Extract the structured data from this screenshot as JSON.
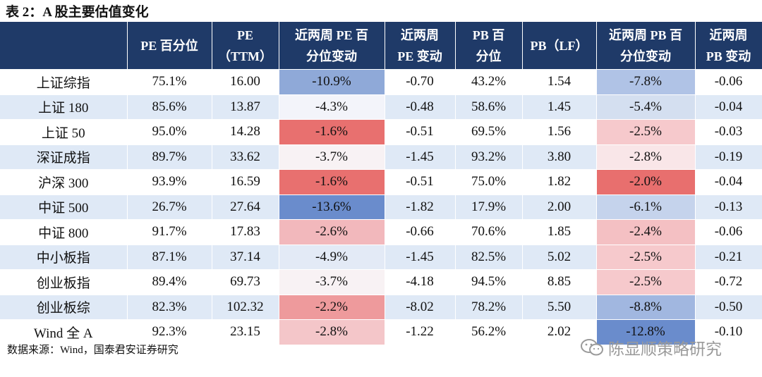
{
  "title": "表 2：A 股主要估值变化",
  "table": {
    "header": [
      [
        "PE 百分位"
      ],
      [
        "PE",
        "（TTM）"
      ],
      [
        "近两周 PE 百",
        "分位变动"
      ],
      [
        "近两周",
        "PE 变动"
      ],
      [
        "PB 百",
        "分位"
      ],
      [
        "PB（LF）"
      ],
      [
        "近两周 PB 百",
        "分位变动"
      ],
      [
        "近两周",
        "PB 变动"
      ]
    ],
    "rows": [
      [
        "上证综指",
        "75.1%",
        "16.00",
        "-10.9%",
        "-0.70",
        "43.2%",
        "1.54",
        "-7.8%",
        "-0.06"
      ],
      [
        "上证 180",
        "85.6%",
        "13.87",
        "-4.3%",
        "-0.48",
        "58.6%",
        "1.45",
        "-5.4%",
        "-0.04"
      ],
      [
        "上证 50",
        "95.0%",
        "14.28",
        "-1.6%",
        "-0.51",
        "69.5%",
        "1.56",
        "-2.5%",
        "-0.03"
      ],
      [
        "深证成指",
        "89.7%",
        "33.62",
        "-3.7%",
        "-1.45",
        "93.2%",
        "3.80",
        "-2.8%",
        "-0.19"
      ],
      [
        "沪深 300",
        "93.9%",
        "16.59",
        "-1.6%",
        "-0.51",
        "75.0%",
        "1.82",
        "-2.0%",
        "-0.04"
      ],
      [
        "中证 500",
        "26.7%",
        "27.64",
        "-13.6%",
        "-1.82",
        "17.9%",
        "2.00",
        "-6.1%",
        "-0.13"
      ],
      [
        "中证 800",
        "91.7%",
        "17.83",
        "-2.6%",
        "-0.66",
        "70.6%",
        "1.85",
        "-2.4%",
        "-0.06"
      ],
      [
        "中小板指",
        "87.1%",
        "37.14",
        "-4.9%",
        "-1.45",
        "82.5%",
        "5.02",
        "-2.5%",
        "-0.21"
      ],
      [
        "创业板指",
        "89.4%",
        "69.73",
        "-3.7%",
        "-4.18",
        "94.5%",
        "8.85",
        "-2.5%",
        "-0.72"
      ],
      [
        "创业板综",
        "82.3%",
        "102.32",
        "-2.2%",
        "-8.02",
        "78.2%",
        "5.50",
        "-8.8%",
        "-0.50"
      ],
      [
        "Wind 全 A",
        "92.3%",
        "23.15",
        "-2.8%",
        "-1.22",
        "56.2%",
        "2.02",
        "-12.8%",
        "-0.10"
      ]
    ],
    "highlight": [
      {
        "column": 3,
        "colors": [
          "#8fa9d8",
          "#f3f4fa",
          "#e8706f",
          "#f8f2f4",
          "#e8706f",
          "#6a8ccc",
          "#f2b8bc",
          "#e3eaf6",
          "#f8f2f4",
          "#ee9a9c",
          "#f4c6c9"
        ]
      },
      {
        "column": 7,
        "colors": [
          "#b0c3e6",
          "#d4dff0",
          "#f6c9cc",
          "#f9e6e8",
          "#e86f6e",
          "#c5d3ec",
          "#f4c0c3",
          "#f6c9cc",
          "#f6c9cc",
          "#a1b7e0",
          "#6a8ccc"
        ]
      }
    ]
  },
  "source": "数据来源：Wind，国泰君安证券研究",
  "watermark": "陈显顺策略研究"
}
